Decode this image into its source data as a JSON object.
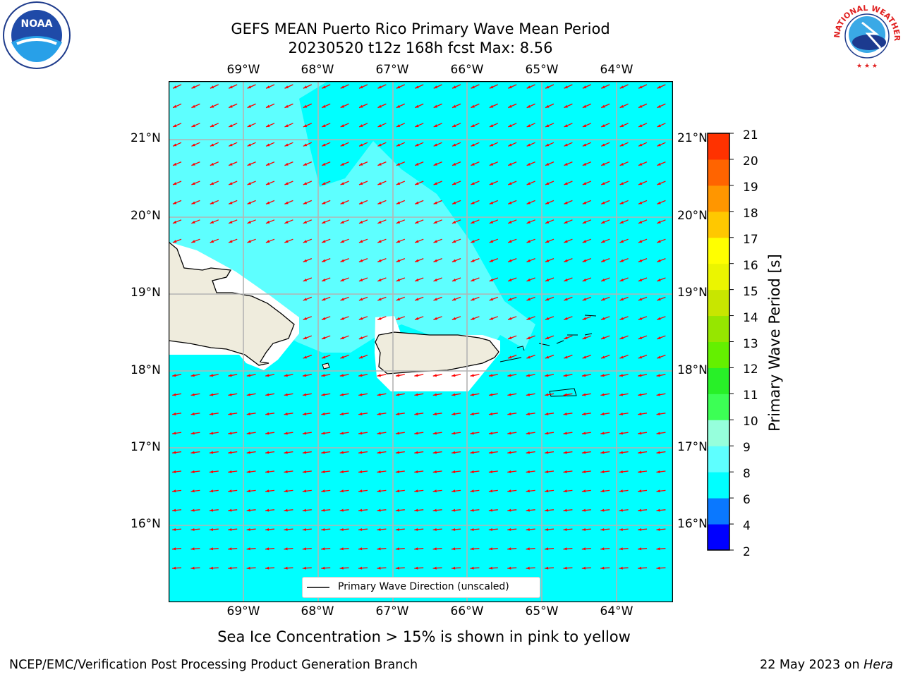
{
  "header": {
    "title_line1": "GEFS MEAN Puerto Rico Primary Wave Mean Period",
    "title_line2": "20230520 t12z 168h fcst   Max: 8.56"
  },
  "logos": {
    "left": {
      "icon": "noaa-logo",
      "text": "NOAA",
      "ring_text": "NATIONAL OCEANIC AND ATMOSPHERIC ADMINISTRATION · U.S. DEPARTMENT OF COMMERCE"
    },
    "right": {
      "icon": "nws-logo",
      "ring_text": "NATIONAL WEATHER SERVICE"
    }
  },
  "map": {
    "lon_labels": [
      "69°W",
      "68°W",
      "67°W",
      "66°W",
      "65°W",
      "64°W"
    ],
    "lat_labels": [
      "21°N",
      "20°N",
      "19°N",
      "18°N",
      "17°N",
      "16°N"
    ],
    "legend_label": "Primary Wave Direction (unscaled)",
    "arrow_color": "#ff0000",
    "ocean_color": "#00ffff",
    "higher_period_color": "#5effff",
    "land_color": "#efecdd",
    "gridlines": true
  },
  "colorbar": {
    "label": "Primary Wave Period [s]",
    "ticks": [
      "2",
      "4",
      "6",
      "8",
      "9",
      "10",
      "11",
      "12",
      "13",
      "14",
      "15",
      "16",
      "17",
      "18",
      "19",
      "20",
      "21"
    ],
    "levels": [
      2,
      4,
      6,
      8,
      9,
      10,
      11,
      12,
      13,
      14,
      15,
      16,
      17,
      18,
      19,
      20,
      21
    ],
    "colors": [
      "#0000ff",
      "#0a78ff",
      "#00ffff",
      "#5effff",
      "#96ffdc",
      "#3cff55",
      "#28f028",
      "#64f000",
      "#96e600",
      "#c8e600",
      "#ebf500",
      "#ffff00",
      "#ffc800",
      "#ff9600",
      "#ff6400",
      "#ff3200",
      "#ff0000"
    ]
  },
  "footer": {
    "note": "Sea Ice Concentration > 15% is shown in pink to yellow",
    "credit_left": "NCEP/EMC/Verification Post Processing Product Generation Branch",
    "credit_right_date": "22 May 2023 on",
    "credit_right_host": "Hera"
  }
}
